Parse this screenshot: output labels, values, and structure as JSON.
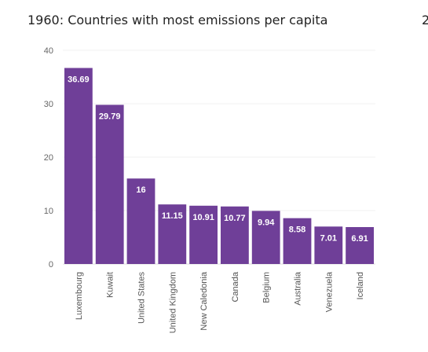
{
  "title": "1960: Countries with most emissions per capita",
  "next_title": "2",
  "chart_data": {
    "type": "bar",
    "title": "1960: Countries with most emissions per capita",
    "categories": [
      "Luxembourg",
      "Kuwait",
      "United States",
      "United Kingdom",
      "New Caledonia",
      "Canada",
      "Belgium",
      "Australia",
      "Venezuela",
      "Iceland"
    ],
    "values": [
      36.69,
      29.79,
      16,
      11.15,
      10.91,
      10.77,
      9.94,
      8.58,
      7.01,
      6.91
    ],
    "data_labels": [
      "36.69",
      "29.79",
      "16",
      "11.15",
      "10.91",
      "10.77",
      "9.94",
      "8.58",
      "7.01",
      "6.91"
    ],
    "yticks": [
      "0",
      "10",
      "20",
      "30",
      "40"
    ],
    "ylim": [
      0,
      40
    ],
    "xlabel": "",
    "ylabel": "",
    "grid": true,
    "bar_color": "#6f3f98"
  }
}
